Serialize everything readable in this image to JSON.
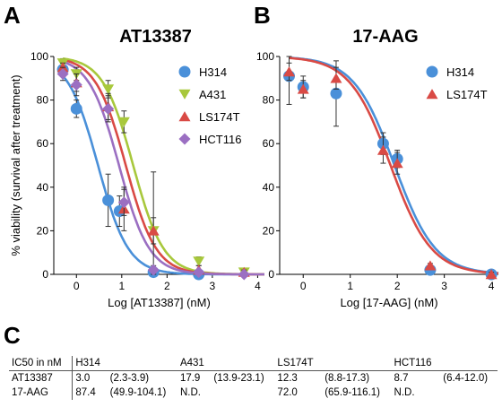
{
  "panels": {
    "a": "A",
    "b": "B",
    "c": "C"
  },
  "chart_data": [
    {
      "type": "line",
      "title": "AT13387",
      "xlabel": "Log [AT13387] (nM)",
      "ylabel": "% viability (survival after treatment)",
      "xlim": [
        -0.5,
        4.15
      ],
      "ylim": [
        0,
        100
      ],
      "xticks": [
        0,
        1,
        2,
        3,
        4
      ],
      "yticks": [
        0,
        20,
        40,
        60,
        80,
        100
      ],
      "legend_position": "top-right",
      "series": [
        {
          "name": "H314",
          "color": "#4a90d9",
          "marker": "circle",
          "x": [
            -0.3,
            0.0,
            0.7,
            0.95,
            1.7,
            2.7
          ],
          "y": [
            94,
            76,
            34,
            29,
            1,
            0
          ],
          "err": [
            3,
            4,
            12,
            7,
            1,
            1
          ],
          "logic50": 0.477,
          "hill": 1.3
        },
        {
          "name": "A431",
          "color": "#a8c83c",
          "marker": "triangle-down",
          "x": [
            -0.3,
            0.0,
            0.7,
            1.05,
            1.7,
            2.7,
            3.7
          ],
          "y": [
            97,
            92,
            85,
            70,
            20,
            6,
            1
          ],
          "err": [
            2,
            3,
            4,
            5,
            6,
            2,
            1
          ],
          "logic50": 1.253,
          "hill": 1.3
        },
        {
          "name": "LS174T",
          "color": "#d94a45",
          "marker": "triangle-up",
          "x": [
            -0.3,
            0.0,
            0.7,
            1.05,
            1.7,
            2.7,
            3.7
          ],
          "y": [
            95,
            88,
            77,
            30,
            20,
            2,
            1
          ],
          "err": [
            2,
            4,
            6,
            10,
            27,
            2,
            1
          ],
          "logic50": 1.09,
          "hill": 1.3
        },
        {
          "name": "HCT116",
          "color": "#9b6fc2",
          "marker": "diamond",
          "x": [
            -0.3,
            0.0,
            0.7,
            1.05,
            1.7,
            2.7,
            3.7
          ],
          "y": [
            92,
            87,
            76,
            33,
            2,
            1,
            0
          ],
          "err": [
            3,
            5,
            6,
            6,
            2,
            1,
            1
          ],
          "logic50": 0.94,
          "hill": 1.3
        }
      ]
    },
    {
      "type": "line",
      "title": "17-AAG",
      "xlabel": "Log [17-AAG] (nM)",
      "ylabel": "",
      "xlim": [
        -0.5,
        4.15
      ],
      "ylim": [
        0,
        100
      ],
      "xticks": [
        0,
        1,
        2,
        3,
        4
      ],
      "yticks": [
        0,
        20,
        40,
        60,
        80,
        100
      ],
      "legend_position": "top-right",
      "series": [
        {
          "name": "H314",
          "color": "#4a90d9",
          "marker": "circle",
          "x": [
            -0.3,
            0.0,
            0.7,
            1.7,
            2.0,
            2.7,
            4.0
          ],
          "y": [
            91,
            86,
            83,
            60,
            53,
            2,
            0
          ],
          "err": [
            13,
            5,
            15,
            5,
            4,
            1,
            1
          ],
          "logic50": 1.941,
          "hill": 1.0
        },
        {
          "name": "LS174T",
          "color": "#d94a45",
          "marker": "triangle-up",
          "x": [
            -0.3,
            0.0,
            0.7,
            1.7,
            2.0,
            2.7,
            4.0
          ],
          "y": [
            93,
            85,
            90,
            57,
            51,
            4,
            0
          ],
          "err": [
            4,
            4,
            5,
            6,
            5,
            1,
            1
          ],
          "logic50": 1.857,
          "hill": 1.0
        }
      ]
    }
  ],
  "table": {
    "headers": [
      "IC50 in nM",
      "H314",
      "",
      "A431",
      "",
      "LS174T",
      "",
      "HCT116",
      ""
    ],
    "rows": [
      [
        "AT13387",
        "3.0",
        "(2.3-3.9)",
        "17.9",
        "(13.9-23.1)",
        "12.3",
        "(8.8-17.3)",
        "8.7",
        "(6.4-12.0)"
      ],
      [
        "17-AAG",
        "87.4",
        "(49.9-104.1)",
        "N.D.",
        "",
        "72.0",
        "(65.9-116.1)",
        "N.D.",
        ""
      ]
    ]
  }
}
